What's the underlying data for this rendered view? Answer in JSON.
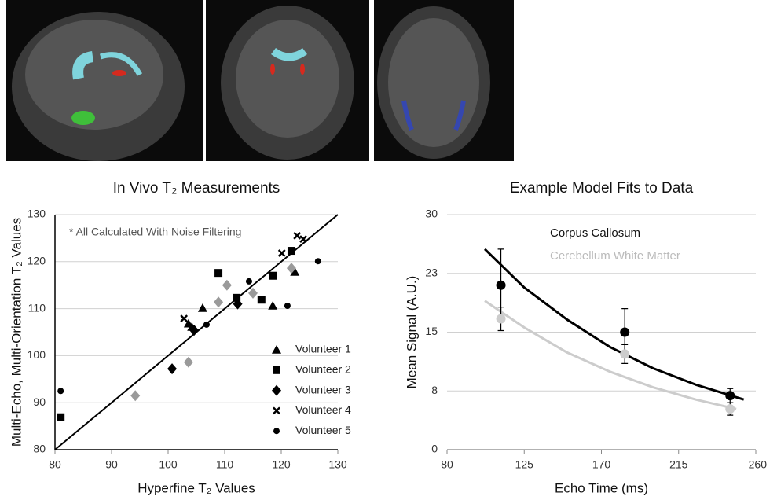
{
  "chart_data": [
    {
      "type": "scatter",
      "title": "In Vivo T₂ Measurements",
      "annotation": "* All Calculated With Noise Filtering",
      "x_label": "Hyperfine T₂ Values",
      "y_label": "Multi-Echo, Multi-Orientation T₂ Values",
      "xlim": [
        80,
        130
      ],
      "ylim": [
        80,
        130
      ],
      "xticks": [
        80,
        90,
        100,
        110,
        120,
        130
      ],
      "yticks": [
        80,
        90,
        100,
        110,
        120,
        130
      ],
      "grid": true,
      "identity_line": {
        "x": [
          80,
          130
        ],
        "values": [
          80,
          130
        ],
        "color": "#000000"
      },
      "series": [
        {
          "name": "Volunteer 1",
          "marker": "triangle",
          "color": "#000000",
          "x": [
            103.6,
            104.2,
            106.1,
            118.5,
            122.4
          ],
          "values": [
            106.8,
            106.1,
            110.1,
            110.6,
            117.8
          ]
        },
        {
          "name": "Volunteer 2",
          "marker": "square",
          "color": "#000000",
          "x": [
            81.0,
            108.9,
            112.1,
            116.5,
            118.5,
            121.8
          ],
          "values": [
            86.9,
            117.6,
            112.3,
            111.9,
            117.0,
            122.3
          ]
        },
        {
          "name": "Volunteer 3",
          "marker": "diamond",
          "color": "#000000",
          "x": [
            100.7,
            104.6,
            112.3
          ],
          "values": [
            97.2,
            105.4,
            111.0
          ]
        },
        {
          "name": "Volunteer 4",
          "marker": "x",
          "color": "#000000",
          "x": [
            102.8,
            120.1,
            122.8,
            123.9
          ],
          "values": [
            107.9,
            121.8,
            125.5,
            124.8
          ]
        },
        {
          "name": "Volunteer 5",
          "marker": "circle",
          "color": "#000000",
          "x": [
            81.0,
            106.8,
            114.3,
            121.1,
            126.5
          ],
          "values": [
            92.5,
            106.6,
            115.8,
            110.6,
            120.1
          ]
        },
        {
          "marker": "diamond",
          "color": "#9a9a9a",
          "x": [
            94.2,
            103.6,
            108.9,
            110.4,
            115.0,
            121.8
          ],
          "values": [
            91.5,
            98.6,
            111.4,
            115.0,
            113.3,
            118.6
          ]
        }
      ]
    },
    {
      "type": "scatter",
      "title": "Example Model Fits to Data",
      "x_label": "Echo Time (ms)",
      "y_label": "Mean Signal (A.U.)",
      "xlim": [
        80,
        260
      ],
      "ylim": [
        0,
        30
      ],
      "xticks": [
        80,
        125,
        170,
        215,
        260
      ],
      "yticks": [
        0,
        {
          "value": 7.5,
          "label": "8"
        },
        15,
        {
          "value": 22.5,
          "label": "23"
        },
        30
      ],
      "grid": true,
      "series": [
        {
          "name": "Corpus Callosum",
          "marker": "circle",
          "color": "#000000",
          "x": [
            111.4,
            183.6,
            245
          ],
          "values": [
            21.0,
            15.0,
            6.9
          ],
          "errors": [
            4.6,
            3.0,
            0.9
          ],
          "fit": {
            "x": [
              102,
              125,
              150,
              175,
              200,
              225,
              253
            ],
            "values": [
              25.6,
              20.7,
              16.6,
              13.1,
              10.4,
              8.3,
              6.4
            ]
          }
        },
        {
          "name": "Cerebellum White Matter",
          "marker": "circle",
          "color": "#cccccc",
          "x": [
            111.4,
            183.6,
            245
          ],
          "values": [
            16.7,
            12.2,
            5.2
          ],
          "errors": [
            1.5,
            1.2,
            0.8
          ],
          "fit": {
            "x": [
              102,
              125,
              150,
              175,
              200,
              225,
              248.6
            ],
            "values": [
              19.0,
              15.6,
              12.4,
              9.95,
              7.97,
              6.4,
              5.2
            ]
          }
        }
      ]
    }
  ]
}
